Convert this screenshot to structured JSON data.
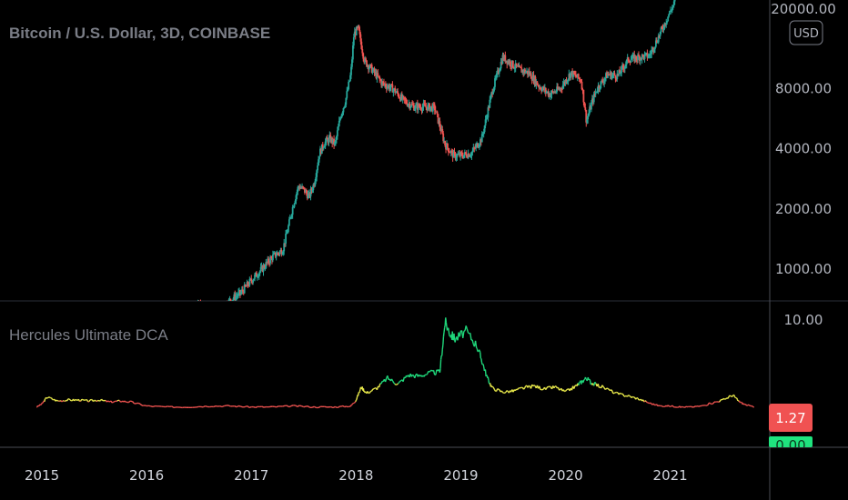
{
  "chart_data": [
    {
      "type": "candlestick",
      "title": "Bitcoin / U.S. Dollar, 3D, COINBASE",
      "currency_label": "USD",
      "y_scale": "log",
      "y_ticks": [
        1000,
        2000,
        4000,
        8000,
        20000
      ],
      "y_tick_labels": [
        "1000.00",
        "2000.00",
        "4000.00",
        "8000.00",
        "20000.00"
      ],
      "ylim": [
        600,
        25000
      ],
      "colors": {
        "up": "#26a69a",
        "down": "#ef5350"
      },
      "series": [
        {
          "name": "",
          "x": [
            2016.4,
            2016.5,
            2016.6,
            2016.7,
            2016.8,
            2016.9,
            2017.0,
            2017.1,
            2017.2,
            2017.3,
            2017.35,
            2017.4,
            2017.45,
            2017.5,
            2017.55,
            2017.6,
            2017.65,
            2017.7,
            2017.75,
            2017.8,
            2017.85,
            2017.9,
            2017.95,
            2017.98,
            2018.02,
            2018.08,
            2018.15,
            2018.25,
            2018.35,
            2018.45,
            2018.55,
            2018.65,
            2018.75,
            2018.85,
            2018.93,
            2019.0,
            2019.1,
            2019.2,
            2019.3,
            2019.4,
            2019.5,
            2019.55,
            2019.65,
            2019.75,
            2019.85,
            2019.95,
            2020.05,
            2020.15,
            2020.2,
            2020.25,
            2020.3,
            2020.4,
            2020.5,
            2020.6,
            2020.7,
            2020.8,
            2020.9,
            2021.0,
            2021.05
          ],
          "y": [
            640,
            660,
            610,
            630,
            700,
            760,
            880,
            1000,
            1150,
            1250,
            1600,
            2100,
            2600,
            2500,
            2300,
            2700,
            3800,
            4300,
            4500,
            4200,
            5800,
            7000,
            9500,
            15000,
            16000,
            11000,
            10000,
            8500,
            8000,
            7000,
            6500,
            6500,
            6400,
            4200,
            3700,
            3700,
            3800,
            4500,
            7800,
            11500,
            10500,
            10000,
            9600,
            8200,
            7500,
            8000,
            9600,
            8800,
            5500,
            6800,
            8000,
            9400,
            9300,
            11200,
            11500,
            11700,
            15000,
            19500,
            22000
          ]
        }
      ]
    },
    {
      "type": "line",
      "title": "Hercules Ultimate DCA",
      "y_ticks": [
        10
      ],
      "y_tick_labels": [
        "10.00"
      ],
      "ylim": [
        0,
        12
      ],
      "x_ticks": [
        2015,
        2016,
        2017,
        2018,
        2019,
        2020,
        2021
      ],
      "x_tick_labels": [
        "2015",
        "2016",
        "2017",
        "2018",
        "2019",
        "2020",
        "2021"
      ],
      "xlim": [
        2014.6,
        2021.95
      ],
      "last_value_label": "1.27",
      "hidden_value_label": "0.00",
      "series": [
        {
          "name": "",
          "x": [
            2014.95,
            2015.0,
            2015.05,
            2015.15,
            2015.25,
            2015.35,
            2015.45,
            2015.55,
            2015.65,
            2015.75,
            2015.85,
            2016.0,
            2016.2,
            2016.4,
            2016.6,
            2016.8,
            2017.0,
            2017.2,
            2017.4,
            2017.6,
            2017.8,
            2017.95,
            2018.0,
            2018.05,
            2018.1,
            2018.2,
            2018.3,
            2018.4,
            2018.5,
            2018.6,
            2018.7,
            2018.8,
            2018.85,
            2018.9,
            2018.95,
            2019.05,
            2019.15,
            2019.2,
            2019.25,
            2019.3,
            2019.4,
            2019.5,
            2019.6,
            2019.7,
            2019.8,
            2019.9,
            2020.0,
            2020.1,
            2020.15,
            2020.2,
            2020.25,
            2020.35,
            2020.5,
            2020.6,
            2020.7,
            2020.8,
            2020.9,
            2021.0,
            2021.1,
            2021.2,
            2021.3,
            2021.4,
            2021.5,
            2021.6,
            2021.65,
            2021.7,
            2021.8
          ],
          "y": [
            1.3,
            1.6,
            2.3,
            1.9,
            2.0,
            2.0,
            1.9,
            2.0,
            1.8,
            1.9,
            1.8,
            1.4,
            1.3,
            1.3,
            1.4,
            1.4,
            1.3,
            1.3,
            1.4,
            1.3,
            1.3,
            1.4,
            2.0,
            3.3,
            2.7,
            3.2,
            4.2,
            3.6,
            4.5,
            4.4,
            4.7,
            4.8,
            9.8,
            8.6,
            8.1,
            8.9,
            7.5,
            6.0,
            4.3,
            3.2,
            2.8,
            2.9,
            3.2,
            3.4,
            3.1,
            3.3,
            2.8,
            3.4,
            3.8,
            4.2,
            3.7,
            3.3,
            2.6,
            2.4,
            2.1,
            1.7,
            1.4,
            1.4,
            1.3,
            1.3,
            1.4,
            1.7,
            2.0,
            2.5,
            1.9,
            1.6,
            1.27
          ]
        }
      ]
    }
  ]
}
